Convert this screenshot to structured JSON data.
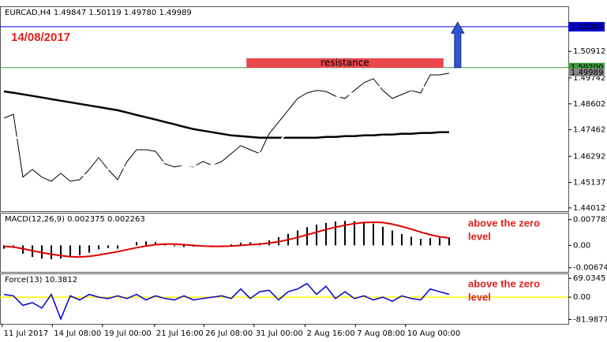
{
  "chart_data": [
    {
      "type": "line",
      "title": "EURCAD,H4  1.49847 1.50119 1.49780 1.49989",
      "date_label": "14/08/2017",
      "x": [
        0,
        1,
        2,
        3,
        4,
        5,
        6,
        7,
        8,
        9,
        10,
        11,
        12,
        13,
        14,
        15,
        16,
        17,
        18,
        19,
        20,
        21,
        22,
        23,
        24,
        25,
        26,
        27,
        28,
        29,
        30,
        31,
        32,
        33,
        34,
        35,
        36,
        37,
        38,
        39,
        40,
        41,
        42,
        43,
        44,
        45,
        46,
        47
      ],
      "xlim": [
        -0.42,
        59.58
      ],
      "xticks": [
        {
          "value": -0.2,
          "label": "11 Jul 2017"
        },
        {
          "value": 5.1,
          "label": "14 Jul 08:00"
        },
        {
          "value": 10.4,
          "label": "19 Jul 00:00"
        },
        {
          "value": 15.9,
          "label": "21 Jul 16:00"
        },
        {
          "value": 21.1,
          "label": "26 Jul 08:00"
        },
        {
          "value": 26.4,
          "label": "31 Jul 00:00"
        },
        {
          "value": 31.8,
          "label": "2 Aug 16:00"
        },
        {
          "value": 37.1,
          "label": "7 Aug 08:00"
        },
        {
          "value": 42.4,
          "label": "10 Aug 00:00"
        }
      ],
      "ylim": [
        1.4387,
        1.529
      ],
      "yticks": [
        1.44012,
        1.45137,
        1.46292,
        1.47462,
        1.48602,
        1.49742,
        1.50912
      ],
      "series": [
        {
          "kind": "line",
          "color": "#000000",
          "width": 1,
          "values": [
            1.4797,
            1.4814,
            1.4537,
            1.4571,
            1.4537,
            1.4519,
            1.4554,
            1.4519,
            1.4526,
            1.4571,
            1.4623,
            1.4571,
            1.4526,
            1.4606,
            1.4658,
            1.4658,
            1.4651,
            1.4596,
            1.4582,
            1.4589,
            1.4582,
            1.4606,
            1.4589,
            1.4606,
            1.4641,
            1.4676,
            1.4658,
            1.4641,
            1.4728,
            1.478,
            1.4832,
            1.4884,
            1.4908,
            1.4919,
            1.4915,
            1.4894,
            1.4884,
            1.4919,
            1.4953,
            1.4971,
            1.4919,
            1.4884,
            1.4901,
            1.4919,
            1.4908,
            1.4988,
            1.4988,
            1.4995
          ]
        },
        {
          "kind": "line",
          "color": "#000000",
          "width": 2.5,
          "values": [
            1.4915,
            1.4909,
            1.4902,
            1.4895,
            1.4888,
            1.4881,
            1.4874,
            1.4867,
            1.486,
            1.4853,
            1.4846,
            1.4839,
            1.4832,
            1.4822,
            1.4811,
            1.4801,
            1.4791,
            1.478,
            1.477,
            1.4759,
            1.4749,
            1.4742,
            1.4735,
            1.4728,
            1.4721,
            1.4718,
            1.4714,
            1.4711,
            1.4711,
            1.4711,
            1.4711,
            1.4711,
            1.4711,
            1.4711,
            1.4714,
            1.4714,
            1.4718,
            1.4718,
            1.4721,
            1.4721,
            1.4725,
            1.4725,
            1.4728,
            1.4728,
            1.4732,
            1.4732,
            1.4735,
            1.4735
          ]
        },
        {
          "kind": "line",
          "color": "#ffffff",
          "width": 2,
          "values": [
            1.4735,
            1.4721,
            1.4693,
            1.4659,
            1.4624,
            1.4596,
            1.4572,
            1.4555,
            1.4544,
            1.4548,
            1.4562,
            1.4572,
            1.4575,
            1.4582,
            1.4589,
            1.4596,
            1.4603,
            1.4603,
            1.4596,
            1.4589,
            1.4586,
            1.4586,
            1.4589,
            1.4593,
            1.4603,
            1.4614,
            1.4627,
            1.4641,
            1.4666,
            1.4693,
            1.4735,
            1.478,
            1.4822,
            1.4856,
            1.4877,
            1.4888,
            1.4898,
            1.4909,
            1.4922,
            1.4933,
            1.4936,
            1.4933,
            1.4926,
            1.4922,
            1.4929,
            1.494,
            1.4947,
            1.4954
          ]
        }
      ],
      "levels": [
        {
          "value": 1.52,
          "label": "1.52000",
          "color": "#0000cc"
        },
        {
          "value": 1.502,
          "label": "1.50200",
          "color": "#3c9b3c"
        }
      ],
      "last_price": 1.49989,
      "resistance": {
        "label": "resistance",
        "ylim": [
          1.5019,
          1.5061
        ],
        "xlim": [
          25.6,
          46.4
        ],
        "color": "#e8474c"
      },
      "arrow": {
        "x": 47.9,
        "from": 1.502,
        "to": 1.522,
        "color": "#2e55d6"
      }
    },
    {
      "type": "line",
      "title": "MACD(12,26,9) 0.002375 0.002263",
      "annotation": [
        "above the zero",
        "level"
      ],
      "ylim": [
        -0.008,
        0.00985
      ],
      "yticks": [
        0.007785,
        {
          "value": 0,
          "label": "0.00"
        },
        -0.006745
      ],
      "series": [
        {
          "kind": "histogram",
          "color": "#000000",
          "values": [
            -0.001,
            -0.0005,
            -0.0025,
            -0.0035,
            -0.004,
            -0.0042,
            -0.004,
            -0.0035,
            -0.003,
            -0.0022,
            -0.0012,
            -0.0008,
            -0.001,
            0,
            0.001,
            0.0012,
            0.001,
            0.0002,
            -0.0003,
            -0.0005,
            -0.0004,
            -0.0003,
            -0.0005,
            -0.0003,
            0.0003,
            0.0008,
            0.0009,
            0.0007,
            0.0015,
            0.0025,
            0.0035,
            0.0045,
            0.0055,
            0.0063,
            0.0068,
            0.0072,
            0.0074,
            0.0073,
            0.007,
            0.0066,
            0.0056,
            0.0045,
            0.0034,
            0.0026,
            0.002,
            0.0022,
            0.0023,
            0.002375
          ]
        },
        {
          "kind": "line",
          "color": "#dd0000",
          "width": 2,
          "values": [
            -0.0003,
            -0.0005,
            -0.001,
            -0.0016,
            -0.0022,
            -0.0027,
            -0.0031,
            -0.0034,
            -0.0035,
            -0.0033,
            -0.0029,
            -0.0024,
            -0.0019,
            -0.0013,
            -0.0007,
            -0.0002,
            0.0002,
            0.0004,
            0.0004,
            0.0002,
            0,
            -0.0002,
            -0.0003,
            -0.0003,
            -0.0002,
            0,
            0.0002,
            0.0004,
            0.0007,
            0.0011,
            0.0017,
            0.0024,
            0.0032,
            0.004,
            0.0048,
            0.0055,
            0.0061,
            0.0066,
            0.0069,
            0.007,
            0.0069,
            0.0064,
            0.0057,
            0.0049,
            0.004,
            0.0032,
            0.0026,
            0.002263
          ]
        }
      ]
    },
    {
      "type": "line",
      "title": "Force(13) 10.3812",
      "annotation": [
        "above the zero",
        "level"
      ],
      "ylim": [
        -98,
        87
      ],
      "yticks": [
        69.0345,
        {
          "value": 0,
          "label": "0.00"
        },
        -81.9877
      ],
      "zero_line": {
        "value": 0,
        "color": "#ffff00"
      },
      "series": [
        {
          "kind": "line",
          "color": "#0000cc",
          "width": 1.5,
          "values": [
            10,
            5,
            -30,
            -20,
            -40,
            10,
            -80,
            5,
            -10,
            10,
            0,
            -5,
            5,
            -5,
            10,
            -10,
            5,
            -5,
            -10,
            5,
            -10,
            -5,
            0,
            5,
            -5,
            30,
            -5,
            20,
            25,
            -10,
            20,
            30,
            50,
            10,
            40,
            -5,
            20,
            -5,
            5,
            -10,
            0,
            -15,
            5,
            -5,
            -10,
            30,
            20,
            10.3812
          ]
        }
      ]
    }
  ]
}
